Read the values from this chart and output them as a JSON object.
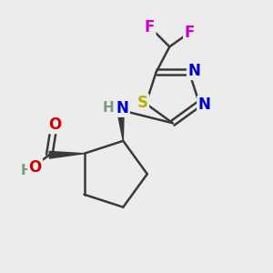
{
  "background_color": "#ececec",
  "bond_color": "#3a3a3a",
  "atoms": {
    "S": {
      "color": "#b8b000",
      "fontsize": 12
    },
    "N": {
      "color": "#0000cc",
      "fontsize": 12
    },
    "O": {
      "color": "#cc0000",
      "fontsize": 12
    },
    "F": {
      "color": "#cc00cc",
      "fontsize": 12
    },
    "C": {
      "color": "#3a3a3a",
      "fontsize": 10
    },
    "H": {
      "color": "#7a9a7a",
      "fontsize": 11
    }
  },
  "figsize": [
    3.0,
    3.0
  ],
  "dpi": 100
}
